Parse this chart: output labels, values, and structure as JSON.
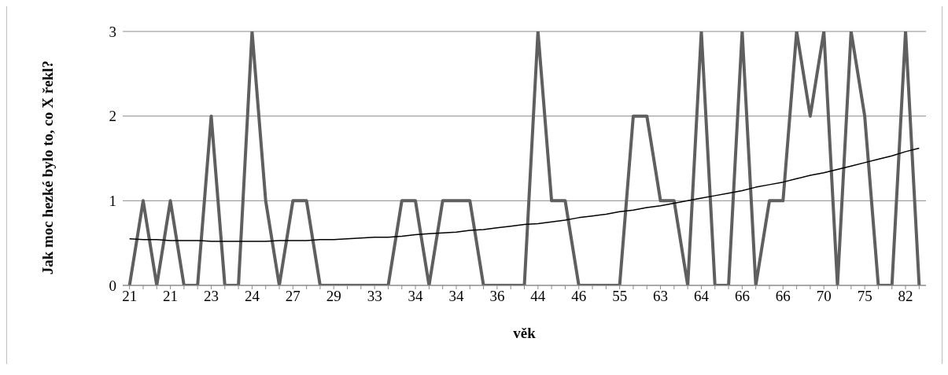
{
  "chart_data": {
    "type": "line",
    "xlabel": "věk",
    "ylabel": "Jak moc hezké bylo to, co X řekl?",
    "categories": [
      "21",
      null,
      null,
      "21",
      null,
      null,
      "23",
      null,
      null,
      "24",
      null,
      null,
      "27",
      null,
      null,
      "29",
      null,
      null,
      "33",
      null,
      null,
      "34",
      null,
      null,
      "34",
      null,
      null,
      "36",
      null,
      null,
      "44",
      null,
      null,
      "46",
      null,
      null,
      "55",
      null,
      null,
      "63",
      null,
      null,
      "64",
      null,
      null,
      "66",
      null,
      null,
      "66",
      null,
      null,
      "70",
      null,
      null,
      "75",
      null,
      null,
      "82",
      null
    ],
    "series": [
      {
        "color": "#5f5f5f",
        "values": [
          0,
          1,
          0,
          1,
          0,
          0,
          2,
          0,
          0,
          3,
          1,
          0,
          1,
          1,
          0,
          0,
          0,
          0,
          0,
          0,
          1,
          1,
          0,
          1,
          1,
          1,
          0,
          0,
          0,
          0,
          3,
          1,
          1,
          0,
          0,
          0,
          0,
          2,
          2,
          1,
          1,
          0,
          3,
          0,
          0,
          3,
          0,
          1,
          1,
          3,
          2,
          3,
          0,
          3,
          2,
          0,
          0,
          3,
          0
        ]
      },
      {
        "type": "line",
        "color": "#000000",
        "values": [
          0.55,
          0.54,
          0.54,
          0.53,
          0.53,
          0.53,
          0.52,
          0.52,
          0.52,
          0.52,
          0.52,
          0.53,
          0.53,
          0.53,
          0.54,
          0.54,
          0.55,
          0.56,
          0.57,
          0.57,
          0.58,
          0.6,
          0.61,
          0.62,
          0.63,
          0.65,
          0.66,
          0.68,
          0.7,
          0.72,
          0.73,
          0.75,
          0.77,
          0.8,
          0.82,
          0.84,
          0.87,
          0.89,
          0.92,
          0.94,
          0.97,
          1.0,
          1.03,
          1.06,
          1.09,
          1.12,
          1.16,
          1.19,
          1.22,
          1.26,
          1.3,
          1.33,
          1.37,
          1.41,
          1.45,
          1.49,
          1.53,
          1.58,
          1.62
        ]
      }
    ],
    "ylim": [
      0,
      3
    ],
    "yticks": [
      0,
      1,
      2,
      3
    ],
    "grid": "y",
    "legend": false,
    "marker": "none",
    "line_style": "solid"
  }
}
